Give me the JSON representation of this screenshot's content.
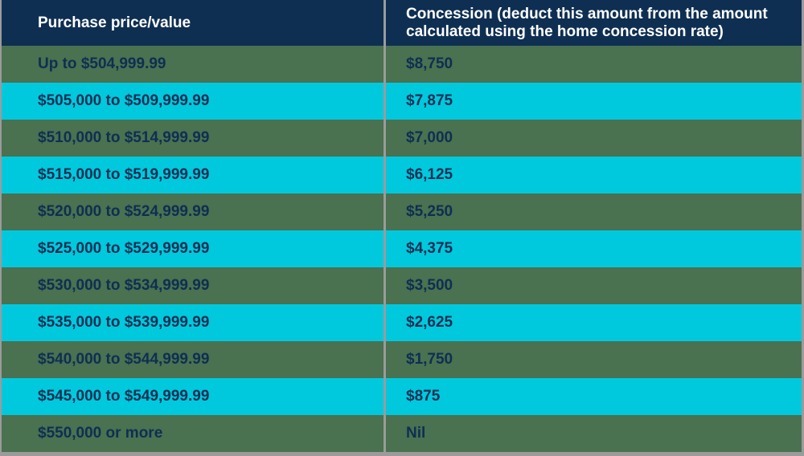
{
  "table": {
    "columns": [
      {
        "label": "Purchase price/value"
      },
      {
        "label": "Concession (deduct this amount from the amount calculated using the home concession rate)"
      }
    ],
    "rows": [
      {
        "price": "Up to $504,999.99",
        "concession": "$8,750"
      },
      {
        "price": "$505,000 to $509,999.99",
        "concession": "$7,875"
      },
      {
        "price": "$510,000 to $514,999.99",
        "concession": "$7,000"
      },
      {
        "price": "$515,000 to $519,999.99",
        "concession": "$6,125"
      },
      {
        "price": "$520,000 to $524,999.99",
        "concession": "$5,250"
      },
      {
        "price": "$525,000 to $529,999.99",
        "concession": "$4,375"
      },
      {
        "price": "$530,000 to $534,999.99",
        "concession": "$3,500"
      },
      {
        "price": "$535,000 to $539,999.99",
        "concession": "$2,625"
      },
      {
        "price": "$540,000 to $544,999.99",
        "concession": "$1,750"
      },
      {
        "price": "$545,000 to $549,999.99",
        "concession": "$875"
      },
      {
        "price": "$550,000 or more",
        "concession": "Nil"
      }
    ]
  },
  "colors": {
    "header_bg": "#0E2F52",
    "header_text": "#FFFFFF",
    "row_green": "#4A7150",
    "row_cyan": "#00C9DE",
    "cell_text": "#0E2F52",
    "divider": "#9B9B9B"
  }
}
